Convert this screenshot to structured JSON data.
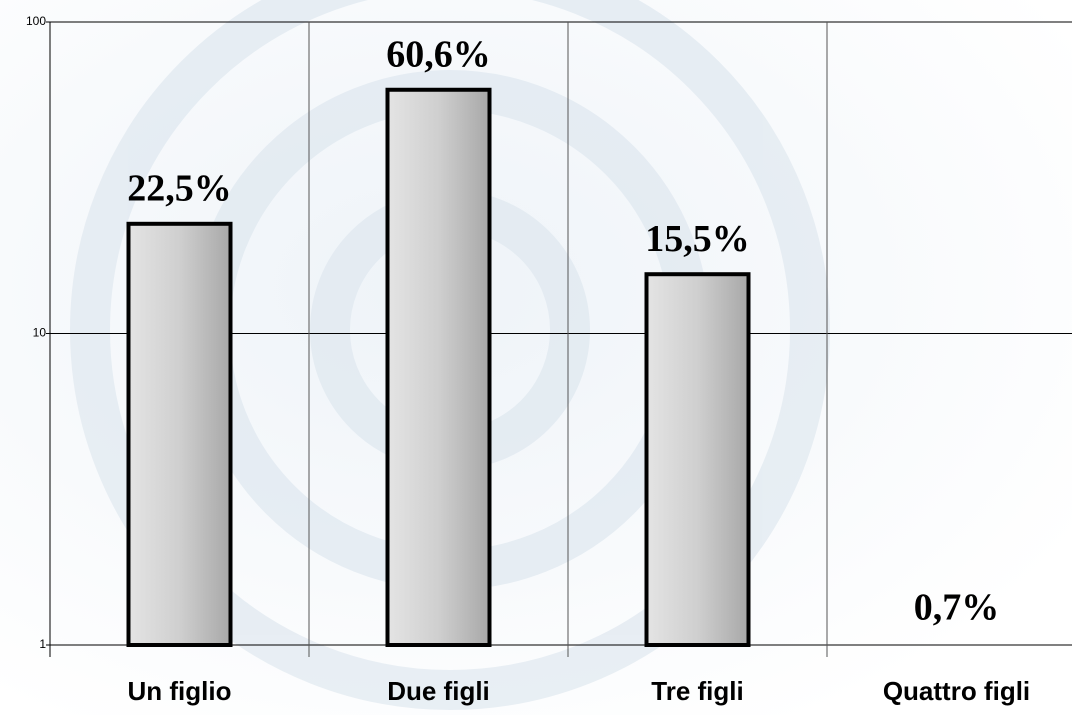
{
  "chart_data": {
    "type": "bar",
    "log_scale": true,
    "categories": [
      "Un figlio",
      "Due figli",
      "Tre figli",
      "Quattro figli"
    ],
    "values": [
      22.5,
      60.6,
      15.5,
      0.7
    ],
    "value_labels": [
      "22,5%",
      "60,6%",
      "15,5%",
      "0,7%"
    ],
    "color": "#c8c8c8",
    "ylim": [
      1,
      100
    ],
    "yticks": [
      1,
      10,
      100
    ],
    "grid": true
  }
}
